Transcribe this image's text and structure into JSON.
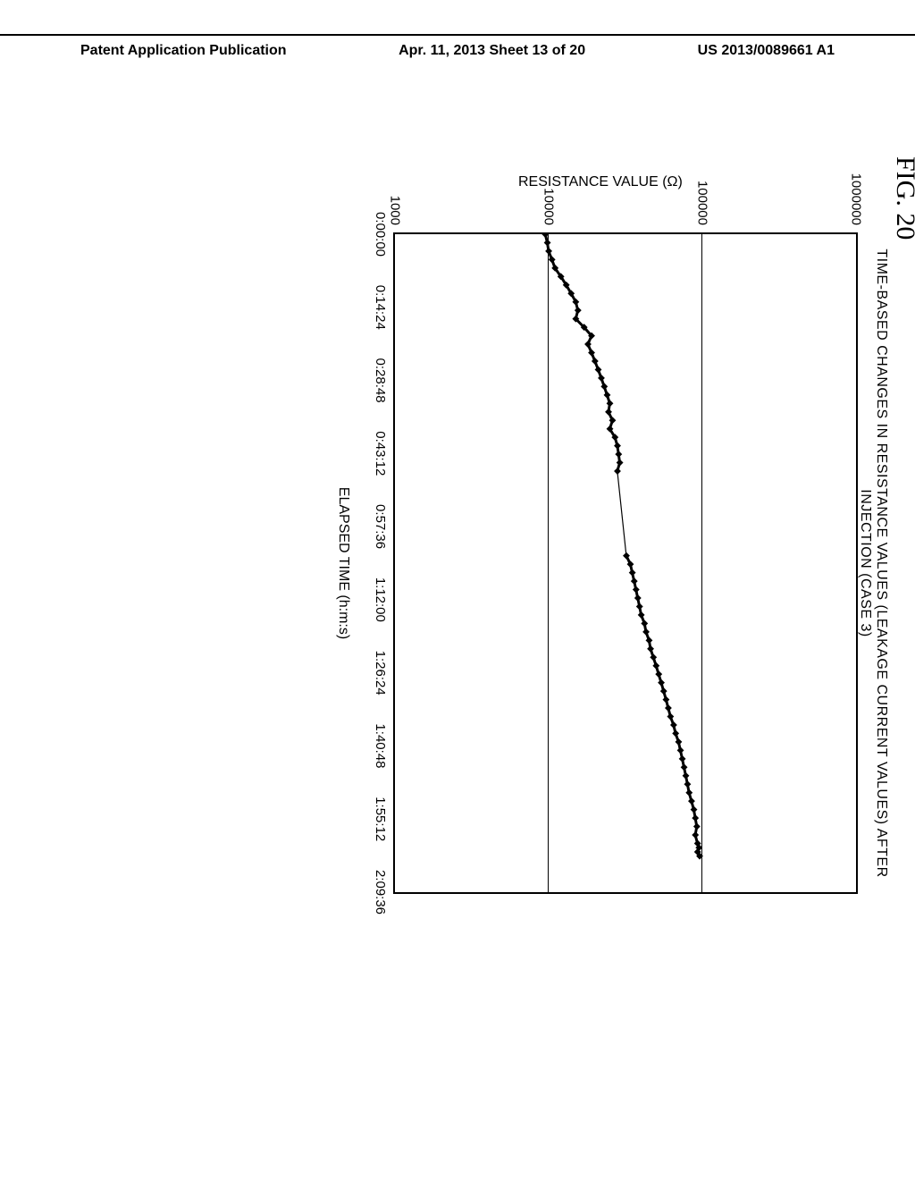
{
  "header": {
    "left": "Patent Application Publication",
    "center": "Apr. 11, 2013  Sheet 13 of 20",
    "right": "US 2013/0089661 A1"
  },
  "figure_label": "FIG. 20",
  "chart": {
    "type": "line",
    "title": "TIME-BASED CHANGES IN RESISTANCE VALUES (LEAKAGE CURRENT VALUES) AFTER INJECTION (CASE 3)",
    "xlabel": "ELAPSED TIME (h:m:s)",
    "ylabel": "RESISTANCE VALUE (Ω)",
    "y_scale": "log",
    "ylim_min": 1000,
    "ylim_max": 1000000,
    "y_ticks": [
      1000,
      10000,
      100000,
      1000000
    ],
    "y_tick_labels": [
      "1000",
      "10000",
      "100000",
      "1000000"
    ],
    "x_ticks": [
      0,
      864,
      1728,
      2592,
      3456,
      4320,
      5184,
      6048,
      6912,
      7776
    ],
    "x_tick_labels": [
      "0:00:00",
      "0:14:24",
      "0:28:48",
      "0:43:12",
      "0:57:36",
      "1:12:00",
      "1:26:24",
      "1:40:48",
      "1:55:12",
      "2:09:36"
    ],
    "x_min": 0,
    "x_max": 7776,
    "line_color": "#000000",
    "line_width": 3,
    "marker_color": "#000000",
    "marker_size": 4,
    "background_color": "#ffffff",
    "border_color": "#000000",
    "data_points": [
      [
        0,
        9500
      ],
      [
        100,
        9800
      ],
      [
        200,
        10000
      ],
      [
        300,
        10500
      ],
      [
        400,
        11000
      ],
      [
        500,
        12000
      ],
      [
        600,
        13000
      ],
      [
        700,
        14000
      ],
      [
        800,
        15000
      ],
      [
        900,
        15500
      ],
      [
        1000,
        15000
      ],
      [
        1100,
        17000
      ],
      [
        1200,
        19000
      ],
      [
        1300,
        18000
      ],
      [
        1400,
        19000
      ],
      [
        1500,
        20000
      ],
      [
        1600,
        21000
      ],
      [
        1700,
        22000
      ],
      [
        1800,
        23000
      ],
      [
        1900,
        24000
      ],
      [
        2000,
        25000
      ],
      [
        2100,
        24500
      ],
      [
        2200,
        26000
      ],
      [
        2300,
        25000
      ],
      [
        2400,
        27000
      ],
      [
        2500,
        28000
      ],
      [
        2600,
        28500
      ],
      [
        2700,
        29000
      ],
      [
        2800,
        28000
      ],
      [
        3800,
        32000
      ],
      [
        3900,
        34000
      ],
      [
        4000,
        35000
      ],
      [
        4100,
        36000
      ],
      [
        4200,
        37000
      ],
      [
        4300,
        38000
      ],
      [
        4400,
        39000
      ],
      [
        4500,
        40000
      ],
      [
        4600,
        42000
      ],
      [
        4700,
        43000
      ],
      [
        4800,
        45000
      ],
      [
        4900,
        46000
      ],
      [
        5000,
        48000
      ],
      [
        5100,
        50000
      ],
      [
        5200,
        52000
      ],
      [
        5300,
        54000
      ],
      [
        5400,
        56000
      ],
      [
        5500,
        58000
      ],
      [
        5600,
        60000
      ],
      [
        5700,
        62000
      ],
      [
        5800,
        65000
      ],
      [
        5900,
        67000
      ],
      [
        6000,
        70000
      ],
      [
        6100,
        72000
      ],
      [
        6200,
        74000
      ],
      [
        6300,
        76000
      ],
      [
        6400,
        78000
      ],
      [
        6500,
        80000
      ],
      [
        6600,
        82000
      ],
      [
        6700,
        85000
      ],
      [
        6800,
        88000
      ],
      [
        6900,
        90000
      ],
      [
        7000,
        92000
      ],
      [
        7100,
        90000
      ],
      [
        7200,
        93000
      ],
      [
        7250,
        95000
      ],
      [
        7300,
        93000
      ],
      [
        7350,
        96000
      ]
    ]
  }
}
